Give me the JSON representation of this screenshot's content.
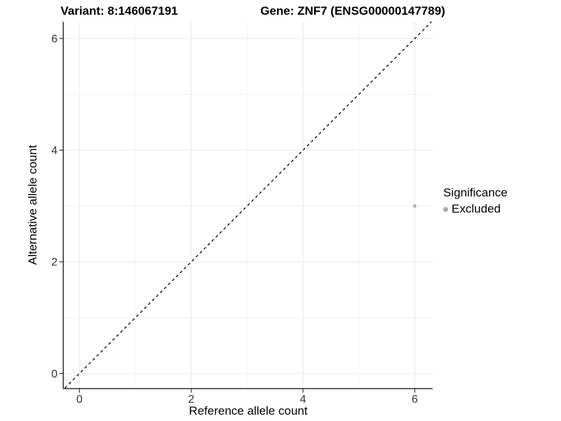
{
  "titles": {
    "variant": "Variant: 8:146067191",
    "gene": "Gene: ZNF7 (ENSG00000147789)"
  },
  "chart_data": {
    "type": "scatter",
    "title_left": "Variant: 8:146067191",
    "title_right": "Gene: ZNF7 (ENSG00000147789)",
    "xlabel": "Reference allele count",
    "ylabel": "Alternative allele count",
    "xlim": [
      -0.28,
      6.32
    ],
    "ylim": [
      -0.26,
      6.3
    ],
    "x_ticks": [
      0,
      2,
      4,
      6
    ],
    "y_ticks": [
      0,
      2,
      4,
      6
    ],
    "x_minor_ticks": [
      1,
      3,
      5
    ],
    "y_minor_ticks": [
      1,
      3,
      5
    ],
    "grid": true,
    "reference_line": {
      "type": "identity y=x",
      "style": "dashed",
      "color": "#000000"
    },
    "series": [
      {
        "name": "Excluded",
        "color": "#aaaaaa",
        "points": [
          {
            "x": 6,
            "y": 3
          }
        ]
      }
    ],
    "legend": {
      "title": "Significance",
      "position": "right",
      "entries": [
        {
          "label": "Excluded",
          "color": "#aaaaaa"
        }
      ]
    }
  },
  "colors": {
    "background": "#ffffff",
    "grid_major": "#e8e8e8",
    "grid_minor": "#f3f3f3",
    "axis_line": "#333333",
    "tick_label": "#333333",
    "point": "#aaaaaa",
    "title_text": "#000000"
  }
}
